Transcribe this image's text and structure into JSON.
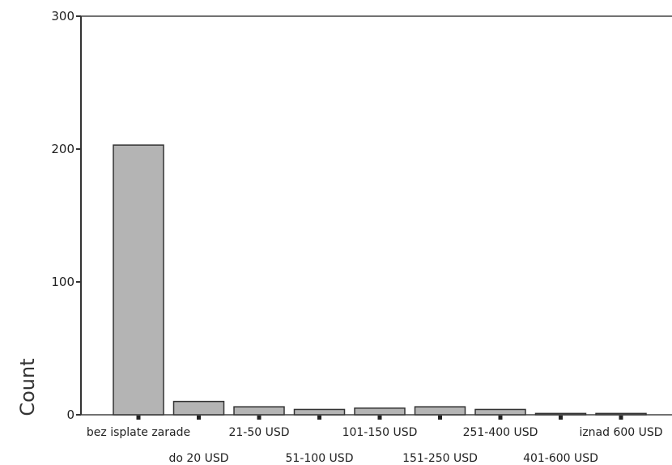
{
  "chart_data": {
    "type": "bar",
    "title": "",
    "xlabel": "",
    "ylabel": "Count",
    "ylim": [
      0,
      300
    ],
    "yticks": [
      "0",
      "100",
      "200",
      "300"
    ],
    "grid": false,
    "bar_color": "#b4b4b4",
    "categories": [
      "bez isplate zarade",
      "do 20 USD",
      "21-50 USD",
      "51-100 USD",
      "101-150 USD",
      "151-250 USD",
      "251-400 USD",
      "401-600 USD",
      "iznad 600 USD"
    ],
    "values": [
      203,
      10,
      6,
      4,
      5,
      6,
      4,
      1,
      1
    ]
  }
}
